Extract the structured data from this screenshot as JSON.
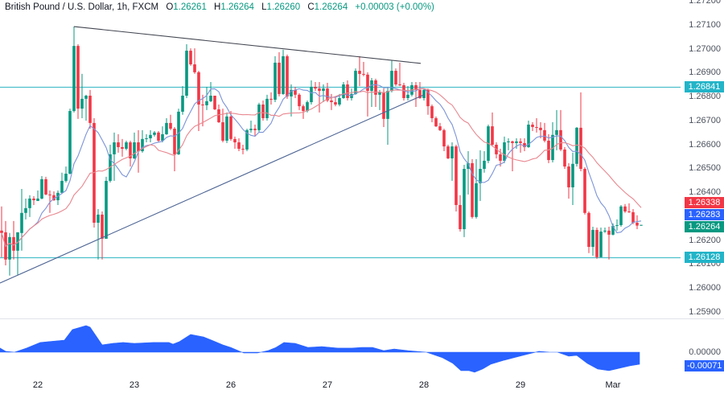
{
  "header": {
    "title": "British Pound / U.S. Dollar, 1h, FXCM",
    "ohlc": [
      {
        "label": "O",
        "value": "1.26261"
      },
      {
        "label": "H",
        "value": "1.26264"
      },
      {
        "label": "L",
        "value": "1.26260"
      },
      {
        "label": "C",
        "value": "1.26264"
      }
    ],
    "change": "+0.00003 (+0.00%)"
  },
  "colors": {
    "up": "#089981",
    "down": "#f23645",
    "ma_fast": "#7b93d8",
    "ma_slow": "#e8878f",
    "hline": "#4cc0cc",
    "hline_label": "#22b4c8",
    "trendline_desc": "#434651",
    "trendline_asc": "#4d6494",
    "oscillator": "#2962ff",
    "osc_label": "#2962ff"
  },
  "chart_data": {
    "type": "candlestick",
    "title": "British Pound / U.S. Dollar, 1h, FXCM",
    "xlabel": "",
    "ylabel": "",
    "ylim": [
      1.25873,
      1.27204
    ],
    "grid": false,
    "y_ticks": [
      "1.27200",
      "1.27100",
      "1.27000",
      "1.26900",
      "1.26800",
      "1.26700",
      "1.26600",
      "1.26500",
      "1.26400",
      "1.26200",
      "1.26100",
      "1.26000",
      "1.25900"
    ],
    "x_labels": [
      {
        "i": 9,
        "label": "22"
      },
      {
        "i": 33,
        "label": "23"
      },
      {
        "i": 57,
        "label": "26"
      },
      {
        "i": 81,
        "label": "27"
      },
      {
        "i": 105,
        "label": "28"
      },
      {
        "i": 129,
        "label": "29"
      },
      {
        "i": 152,
        "label": "Mar"
      }
    ],
    "candle_format": [
      "open",
      "high",
      "low",
      "close"
    ],
    "candles": [
      [
        1.2624,
        1.26341,
        1.26129,
        1.2623
      ],
      [
        1.26233,
        1.2628,
        1.26095,
        1.26119
      ],
      [
        1.26119,
        1.2623,
        1.26052,
        1.26213
      ],
      [
        1.26213,
        1.2628,
        1.26119,
        1.26156
      ],
      [
        1.26156,
        1.26233,
        1.26055,
        1.26233
      ],
      [
        1.2623,
        1.26414,
        1.26156,
        1.26314
      ],
      [
        1.26314,
        1.26374,
        1.26287,
        1.26334
      ],
      [
        1.26334,
        1.26388,
        1.26297,
        1.26374
      ],
      [
        1.26374,
        1.26384,
        1.26347,
        1.26367
      ],
      [
        1.26364,
        1.26408,
        1.26364,
        1.26374
      ],
      [
        1.26374,
        1.26468,
        1.26371,
        1.26455
      ],
      [
        1.26455,
        1.26465,
        1.26388,
        1.26391
      ],
      [
        1.26391,
        1.26408,
        1.26314,
        1.26388
      ],
      [
        1.26388,
        1.26404,
        1.26364,
        1.26367
      ],
      [
        1.26367,
        1.26408,
        1.26347,
        1.26398
      ],
      [
        1.26398,
        1.26482,
        1.26398,
        1.26448
      ],
      [
        1.26448,
        1.26508,
        1.26441,
        1.26478
      ],
      [
        1.26478,
        1.2675,
        1.26475,
        1.2674
      ],
      [
        1.2674,
        1.27093,
        1.26734,
        1.27012
      ],
      [
        1.27012,
        1.27019,
        1.26707,
        1.2675
      ],
      [
        1.2675,
        1.26895,
        1.2671,
        1.26791
      ],
      [
        1.26791,
        1.26808,
        1.267,
        1.26804
      ],
      [
        1.26804,
        1.26828,
        1.26666,
        1.2669
      ],
      [
        1.2669,
        1.2671,
        1.26253,
        1.26273
      ],
      [
        1.26273,
        1.2633,
        1.26119,
        1.26307
      ],
      [
        1.26307,
        1.2632,
        1.26119,
        1.26206
      ],
      [
        1.26206,
        1.26465,
        1.26206,
        1.26448
      ],
      [
        1.26448,
        1.26599,
        1.26441,
        1.26559
      ],
      [
        1.26559,
        1.2665,
        1.26448,
        1.26609
      ],
      [
        1.26609,
        1.26643,
        1.26566,
        1.26589
      ],
      [
        1.26589,
        1.26623,
        1.26549,
        1.26582
      ],
      [
        1.26582,
        1.26616,
        1.26576,
        1.26609
      ],
      [
        1.26609,
        1.26616,
        1.26508,
        1.26542
      ],
      [
        1.26542,
        1.2665,
        1.26539,
        1.26609
      ],
      [
        1.26609,
        1.2666,
        1.26482,
        1.26572
      ],
      [
        1.26572,
        1.2666,
        1.26566,
        1.26623
      ],
      [
        1.26623,
        1.26643,
        1.26609,
        1.26626
      ],
      [
        1.26626,
        1.2666,
        1.26609,
        1.2664
      ],
      [
        1.2664,
        1.26656,
        1.26633,
        1.2665
      ],
      [
        1.2665,
        1.26656,
        1.26609,
        1.26616
      ],
      [
        1.26616,
        1.26676,
        1.26609,
        1.26643
      ],
      [
        1.26643,
        1.2671,
        1.2664,
        1.2669
      ],
      [
        1.2669,
        1.26724,
        1.2666,
        1.26666
      ],
      [
        1.26666,
        1.26673,
        1.26488,
        1.26559
      ],
      [
        1.26559,
        1.2675,
        1.26556,
        1.26737
      ],
      [
        1.26737,
        1.26844,
        1.26724,
        1.26804
      ],
      [
        1.26804,
        1.27019,
        1.26794,
        1.26992
      ],
      [
        1.26992,
        1.27002,
        1.26929,
        1.26935
      ],
      [
        1.26935,
        1.27002,
        1.26895,
        1.26902
      ],
      [
        1.26902,
        1.26908,
        1.26656,
        1.26767
      ],
      [
        1.26767,
        1.26808,
        1.26676,
        1.26764
      ],
      [
        1.26764,
        1.26841,
        1.26744,
        1.26781
      ],
      [
        1.26781,
        1.26861,
        1.26777,
        1.26804
      ],
      [
        1.26804,
        1.26804,
        1.26744,
        1.26747
      ],
      [
        1.26747,
        1.26767,
        1.2669,
        1.26693
      ],
      [
        1.26693,
        1.2675,
        1.26609,
        1.26616
      ],
      [
        1.26616,
        1.26734,
        1.26606,
        1.26717
      ],
      [
        1.26717,
        1.2674,
        1.26616,
        1.26623
      ],
      [
        1.26623,
        1.26633,
        1.26582,
        1.26609
      ],
      [
        1.26609,
        1.26626,
        1.26572,
        1.26582
      ],
      [
        1.26582,
        1.26599,
        1.26559,
        1.26579
      ],
      [
        1.26579,
        1.26666,
        1.26572,
        1.2666
      ],
      [
        1.2666,
        1.267,
        1.2665,
        1.26666
      ],
      [
        1.26666,
        1.26683,
        1.26633,
        1.2666
      ],
      [
        1.2666,
        1.26774,
        1.2665,
        1.26767
      ],
      [
        1.26767,
        1.26784,
        1.267,
        1.2671
      ],
      [
        1.2671,
        1.26808,
        1.267,
        1.26791
      ],
      [
        1.26791,
        1.26818,
        1.26767,
        1.26787
      ],
      [
        1.26787,
        1.26969,
        1.26777,
        1.26942
      ],
      [
        1.26942,
        1.26986,
        1.26801,
        1.26811
      ],
      [
        1.26811,
        1.26996,
        1.26808,
        1.26969
      ],
      [
        1.26969,
        1.26976,
        1.26791,
        1.26801
      ],
      [
        1.26801,
        1.26851,
        1.26717,
        1.26828
      ],
      [
        1.26828,
        1.26841,
        1.26794,
        1.26808
      ],
      [
        1.26808,
        1.26814,
        1.26744,
        1.2676
      ],
      [
        1.2676,
        1.26767,
        1.26707,
        1.2674
      ],
      [
        1.2674,
        1.26784,
        1.26734,
        1.26777
      ],
      [
        1.26777,
        1.26868,
        1.26767,
        1.26841
      ],
      [
        1.26841,
        1.26861,
        1.26824,
        1.26834
      ],
      [
        1.26834,
        1.26861,
        1.26734,
        1.26824
      ],
      [
        1.26824,
        1.26851,
        1.26777,
        1.26834
      ],
      [
        1.26834,
        1.26858,
        1.26777,
        1.26784
      ],
      [
        1.26784,
        1.26811,
        1.26744,
        1.26777
      ],
      [
        1.26777,
        1.26801,
        1.2676,
        1.26767
      ],
      [
        1.26767,
        1.26811,
        1.2676,
        1.26794
      ],
      [
        1.26794,
        1.26861,
        1.26791,
        1.26851
      ],
      [
        1.26851,
        1.26868,
        1.26784,
        1.26794
      ],
      [
        1.26794,
        1.26834,
        1.26784,
        1.26811
      ],
      [
        1.26811,
        1.26918,
        1.26808,
        1.26908
      ],
      [
        1.26908,
        1.26969,
        1.26844,
        1.26895
      ],
      [
        1.26895,
        1.26945,
        1.26885,
        1.26892
      ],
      [
        1.26892,
        1.26902,
        1.26717,
        1.26824
      ],
      [
        1.26824,
        1.26878,
        1.26757,
        1.26868
      ],
      [
        1.26868,
        1.26875,
        1.26757,
        1.26808
      ],
      [
        1.26808,
        1.26828,
        1.26744,
        1.26818
      ],
      [
        1.26818,
        1.26834,
        1.26673,
        1.26707
      ],
      [
        1.26707,
        1.26841,
        1.26599,
        1.26824
      ],
      [
        1.26824,
        1.26952,
        1.26818,
        1.26908
      ],
      [
        1.26908,
        1.26918,
        1.26844,
        1.26851
      ],
      [
        1.26851,
        1.26942,
        1.26844,
        1.26848
      ],
      [
        1.26848,
        1.26858,
        1.26784,
        1.26794
      ],
      [
        1.26794,
        1.26844,
        1.26784,
        1.26808
      ],
      [
        1.26808,
        1.26861,
        1.26801,
        1.26848
      ],
      [
        1.26848,
        1.26861,
        1.26757,
        1.26828
      ],
      [
        1.26828,
        1.26861,
        1.26791,
        1.26794
      ],
      [
        1.26794,
        1.26834,
        1.26784,
        1.26828
      ],
      [
        1.26828,
        1.26834,
        1.26724,
        1.2676
      ],
      [
        1.2676,
        1.26767,
        1.26693,
        1.2671
      ],
      [
        1.2671,
        1.26717,
        1.26673,
        1.26676
      ],
      [
        1.26676,
        1.2669,
        1.26656,
        1.2666
      ],
      [
        1.2666,
        1.26666,
        1.26572,
        1.26592
      ],
      [
        1.26592,
        1.26599,
        1.26539,
        1.26542
      ],
      [
        1.26542,
        1.26609,
        1.26448,
        1.26592
      ],
      [
        1.26592,
        1.26599,
        1.2632,
        1.26347
      ],
      [
        1.26347,
        1.26388,
        1.26236,
        1.26246
      ],
      [
        1.26246,
        1.26515,
        1.26213,
        1.26498
      ],
      [
        1.26498,
        1.26572,
        1.26391,
        1.26522
      ],
      [
        1.26522,
        1.26539,
        1.2629,
        1.26297
      ],
      [
        1.26297,
        1.26539,
        1.2629,
        1.26438
      ],
      [
        1.26438,
        1.26576,
        1.26364,
        1.26498
      ],
      [
        1.26498,
        1.26572,
        1.26482,
        1.26532
      ],
      [
        1.26532,
        1.26683,
        1.26522,
        1.26676
      ],
      [
        1.26676,
        1.26734,
        1.26592,
        1.26599
      ],
      [
        1.26599,
        1.26609,
        1.26542,
        1.26559
      ],
      [
        1.26559,
        1.26582,
        1.26508,
        1.26532
      ],
      [
        1.26532,
        1.26633,
        1.26522,
        1.26609
      ],
      [
        1.26609,
        1.26626,
        1.26576,
        1.26613
      ],
      [
        1.26613,
        1.26616,
        1.26488,
        1.26606
      ],
      [
        1.26606,
        1.26626,
        1.26582,
        1.26613
      ],
      [
        1.26613,
        1.26626,
        1.26566,
        1.26606
      ],
      [
        1.26606,
        1.26626,
        1.26572,
        1.26589
      ],
      [
        1.26589,
        1.267,
        1.26586,
        1.26683
      ],
      [
        1.26683,
        1.26693,
        1.26656,
        1.26673
      ],
      [
        1.26673,
        1.2671,
        1.2665,
        1.2667
      ],
      [
        1.2667,
        1.26693,
        1.26626,
        1.2666
      ],
      [
        1.2666,
        1.2669,
        1.26609,
        1.26616
      ],
      [
        1.26616,
        1.26643,
        1.26522,
        1.26535
      ],
      [
        1.26535,
        1.26693,
        1.26525,
        1.2664
      ],
      [
        1.2664,
        1.26744,
        1.26576,
        1.2666
      ],
      [
        1.2666,
        1.26744,
        1.26572,
        1.26579
      ],
      [
        1.26579,
        1.26589,
        1.26498,
        1.26508
      ],
      [
        1.26508,
        1.26522,
        1.26374,
        1.26421
      ],
      [
        1.26421,
        1.26566,
        1.26347,
        1.26519
      ],
      [
        1.26519,
        1.26673,
        1.26508,
        1.2667
      ],
      [
        1.2667,
        1.26818,
        1.26488,
        1.26498
      ],
      [
        1.26498,
        1.26505,
        1.26307,
        1.26314
      ],
      [
        1.26314,
        1.2632,
        1.26146,
        1.26172
      ],
      [
        1.26172,
        1.26256,
        1.26135,
        1.26243
      ],
      [
        1.26243,
        1.26253,
        1.26122,
        1.26129
      ],
      [
        1.26129,
        1.26253,
        1.26129,
        1.26236
      ],
      [
        1.26236,
        1.26253,
        1.2623,
        1.2624
      ],
      [
        1.2624,
        1.26256,
        1.26119,
        1.26223
      ],
      [
        1.26223,
        1.2627,
        1.2622,
        1.2626
      ],
      [
        1.2626,
        1.26287,
        1.2624,
        1.26263
      ],
      [
        1.26263,
        1.26347,
        1.26256,
        1.26341
      ],
      [
        1.26341,
        1.26351,
        1.26314,
        1.2632
      ],
      [
        1.2632,
        1.26354,
        1.26314,
        1.26317
      ],
      [
        1.26317,
        1.2633,
        1.26267,
        1.26273
      ],
      [
        1.26273,
        1.26304,
        1.26246,
        1.26261
      ],
      [
        1.26261,
        1.26264,
        1.2626,
        1.26264
      ]
    ],
    "overlays": [
      {
        "name": "ma-fast",
        "type": "sma",
        "period": 9,
        "color_key": "ma_fast",
        "last_label": "1.26283",
        "last_price": 1.26283,
        "label_color": "#2962ff"
      },
      {
        "name": "ma-slow",
        "type": "sma",
        "period": 21,
        "color_key": "ma_slow",
        "last_label": "1.26338",
        "last_price": 1.26338,
        "label_color": "#f23645"
      }
    ],
    "last_price": {
      "label": "1.26264",
      "price": 1.26264,
      "color": "#089981"
    },
    "horizontal_lines": [
      {
        "price": 1.26841,
        "label": "1.26841"
      },
      {
        "price": 1.26128,
        "label": "1.26128"
      }
    ],
    "trendlines": [
      {
        "name": "descending-trendline",
        "from": {
          "i": 18,
          "price": 1.27093
        },
        "to": {
          "i": 104.2,
          "price": 1.26939
        },
        "color_key": "trendline_desc"
      },
      {
        "name": "ascending-trendline",
        "from": {
          "i": -0.4,
          "price": 1.26021
        },
        "to": {
          "i": 105,
          "price": 1.26808
        },
        "color_key": "trendline_asc"
      }
    ],
    "oscillator": {
      "type": "area",
      "ylim": [
        -0.00128,
        0.00194
      ],
      "zero_label": "0.00000",
      "last_label": "-0.00071",
      "last_value": -0.00071,
      "points": [
        [
          -0.4,
          0.00024
        ],
        [
          1,
          5e-05
        ],
        [
          3.2,
          0.0
        ],
        [
          6.2,
          0.00024
        ],
        [
          9.6,
          0.00057
        ],
        [
          11.6,
          0.00062
        ],
        [
          15.6,
          0.00071
        ],
        [
          17.6,
          0.00133
        ],
        [
          21,
          0.00156
        ],
        [
          22,
          0.00147
        ],
        [
          25,
          0.00043
        ],
        [
          27.6,
          0.00052
        ],
        [
          30.2,
          0.00057
        ],
        [
          33,
          0.00052
        ],
        [
          37.6,
          0.00057
        ],
        [
          41.6,
          0.00057
        ],
        [
          42.6,
          0.00047
        ],
        [
          44.2,
          0.00062
        ],
        [
          47,
          0.00104
        ],
        [
          50.2,
          0.0009
        ],
        [
          52.2,
          0.00071
        ],
        [
          55,
          0.00043
        ],
        [
          57,
          0.00028
        ],
        [
          60.2,
          -5e-05
        ],
        [
          63.6,
          -5e-05
        ],
        [
          66.2,
          9e-05
        ],
        [
          68.2,
          0.00028
        ],
        [
          70.2,
          0.00057
        ],
        [
          73,
          0.00052
        ],
        [
          76.2,
          0.00028
        ],
        [
          79.6,
          0.00033
        ],
        [
          83.6,
          0.00024
        ],
        [
          87,
          0.00024
        ],
        [
          89.6,
          0.00028
        ],
        [
          92.2,
          0.00028
        ],
        [
          95,
          9e-05
        ],
        [
          97.6,
          0.00019
        ],
        [
          101,
          9e-05
        ],
        [
          105.6,
          0.0
        ],
        [
          109.6,
          -0.00033
        ],
        [
          112.2,
          -0.00066
        ],
        [
          114.2,
          -0.00109
        ],
        [
          116.2,
          -0.00109
        ],
        [
          117.6,
          -0.00118
        ],
        [
          119.6,
          -0.00099
        ],
        [
          121.6,
          -0.00071
        ],
        [
          125,
          -0.00047
        ],
        [
          129.6,
          -0.00019
        ],
        [
          133.6,
          5e-05
        ],
        [
          136.2,
          0.0
        ],
        [
          138.2,
          0.0
        ],
        [
          141,
          -0.00024
        ],
        [
          143,
          -0.00019
        ],
        [
          145.6,
          -0.00066
        ],
        [
          148.2,
          -0.00099
        ],
        [
          151,
          -0.00109
        ],
        [
          153.6,
          -0.00095
        ],
        [
          156.2,
          -0.0008
        ],
        [
          158.6,
          -0.00071
        ]
      ]
    }
  }
}
